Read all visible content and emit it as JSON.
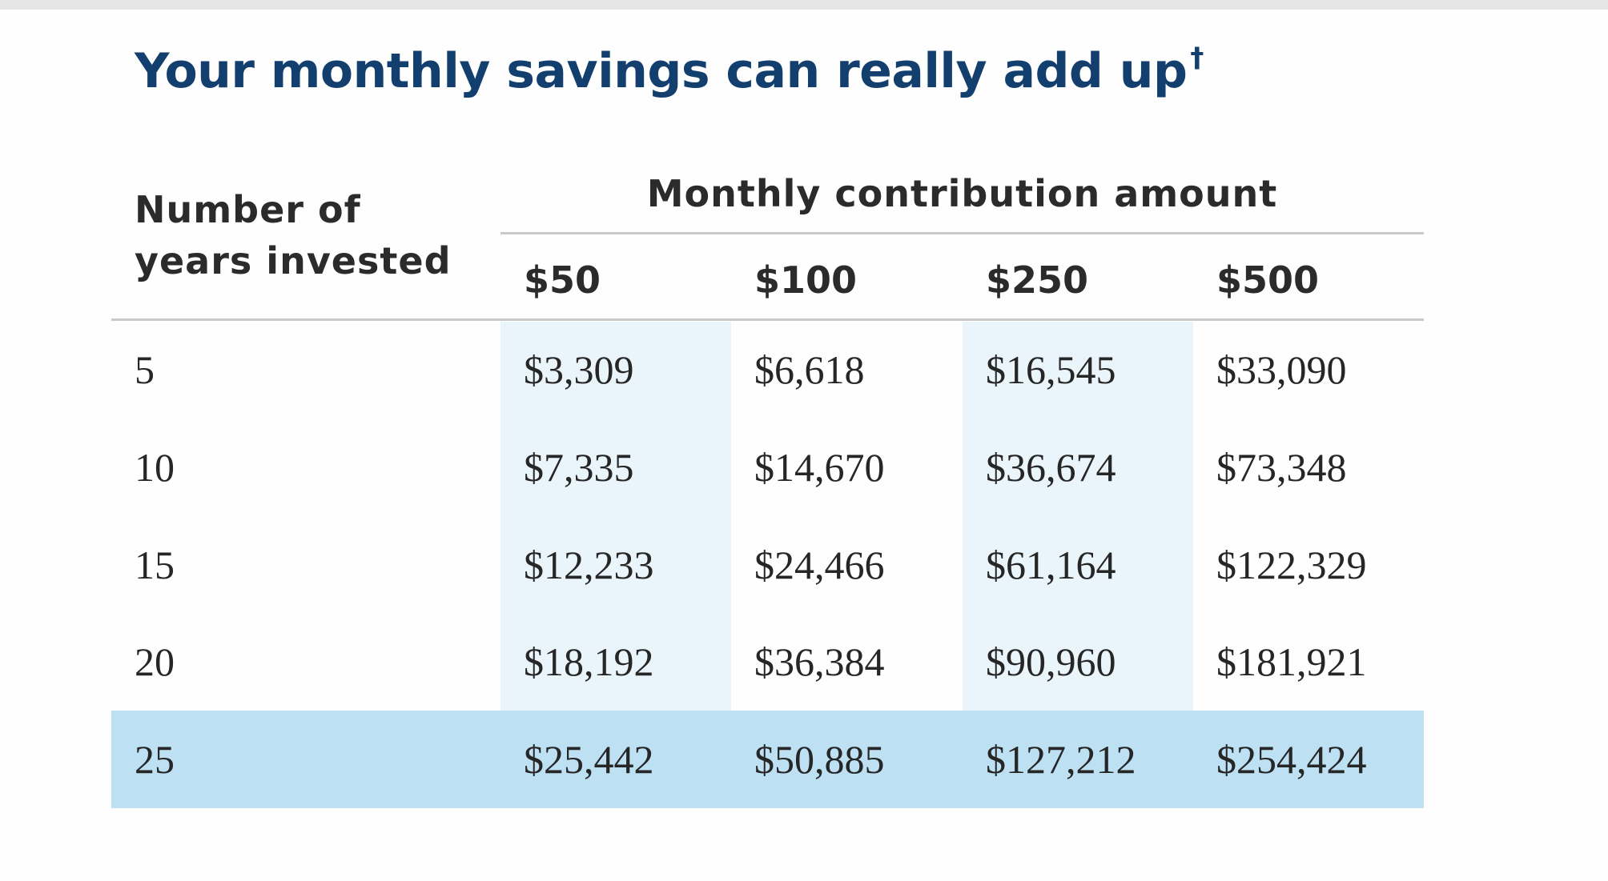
{
  "title": {
    "text": "Your monthly savings can really add up",
    "footnote_mark": "†"
  },
  "table": {
    "row_header": [
      "Number of",
      "years invested"
    ],
    "group_header": "Monthly contribution amount",
    "columns": [
      "$50",
      "$100",
      "$250",
      "$500"
    ],
    "rows": [
      {
        "years": "5",
        "values": [
          "$3,309",
          "$6,618",
          "$16,545",
          "$33,090"
        ]
      },
      {
        "years": "10",
        "values": [
          "$7,335",
          "$14,670",
          "$36,674",
          "$73,348"
        ]
      },
      {
        "years": "15",
        "values": [
          "$12,233",
          "$24,466",
          "$61,164",
          "$122,329"
        ]
      },
      {
        "years": "20",
        "values": [
          "$18,192",
          "$36,384",
          "$90,960",
          "$181,921"
        ]
      },
      {
        "years": "25",
        "values": [
          "$25,442",
          "$50,885",
          "$127,212",
          "$254,424"
        ]
      }
    ],
    "highlighted_row": "25"
  },
  "colors": {
    "title": "#133f6e",
    "column_shade": "#eaf4fb",
    "highlight_row": "#bde0f3"
  }
}
